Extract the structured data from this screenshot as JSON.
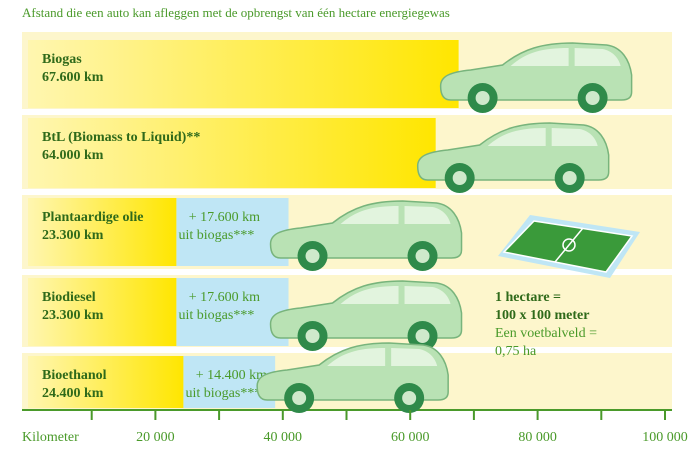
{
  "chart_data": {
    "type": "bar",
    "orientation": "horizontal",
    "stacked": true,
    "title": "Afstand die een auto kan afleggen met de opbrengst van één hectare energiegewas",
    "categories": [
      "Biogas",
      "BtL (Biomass to Liquid)**",
      "Plantaardige olie",
      "Biodiesel",
      "Bioethanol"
    ],
    "series": [
      {
        "color": "#ffe600",
        "values": [
          67600,
          64000,
          23300,
          23300,
          24400
        ],
        "value_labels": [
          "67.600 km",
          "64.000 km",
          "23.300 km",
          "23.300 km",
          "24.400 km"
        ]
      },
      {
        "color": "#bfe6f5",
        "values": [
          null,
          null,
          17600,
          17600,
          14400
        ],
        "value_labels": [
          null,
          null,
          "+ 17.600 km",
          "+ 17.600 km",
          "+ 14.400 km"
        ],
        "notes": [
          null,
          null,
          "uit biogas***",
          "uit biogas***",
          "uit biogas***"
        ]
      }
    ],
    "xlabel": "Kilometer",
    "xlim": [
      0,
      100000
    ],
    "xticks": [
      {
        "value": 20000,
        "label": "20 000"
      },
      {
        "value": 40000,
        "label": "40 000"
      },
      {
        "value": 60000,
        "label": "60 000"
      },
      {
        "value": 80000,
        "label": "80 000"
      },
      {
        "value": 100000,
        "label": "100 000"
      }
    ],
    "xminorticks": [
      10000,
      30000,
      50000,
      70000,
      90000
    ],
    "annotation": [
      "1 hectare =",
      "100 x 100 meter",
      "Een voetbalveld =",
      "0,75 ha"
    ]
  }
}
